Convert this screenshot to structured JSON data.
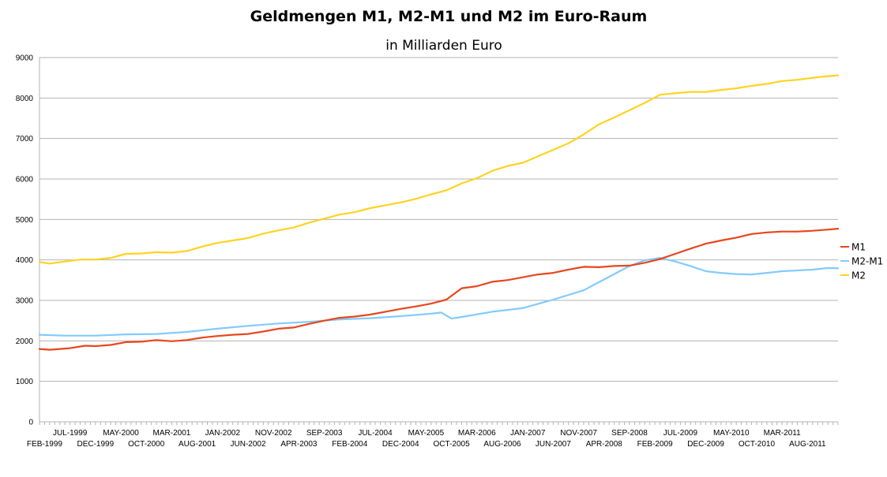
{
  "chart_data": {
    "type": "line",
    "title": "Geldmengen M1, M2-M1 und M2 im Euro-Raum",
    "subtitle": "in Milliarden Euro",
    "xlabel": "",
    "ylabel": "",
    "ylim": [
      0,
      9000
    ],
    "yticks": [
      0,
      1000,
      2000,
      3000,
      4000,
      5000,
      6000,
      7000,
      8000,
      9000
    ],
    "x_start": "1999-01",
    "x_end": "2012-02",
    "grid": true,
    "legend_position": "right",
    "xticks_upper": [
      "JUL-1999",
      "MAY-2000",
      "MAR-2001",
      "JAN-2002",
      "NOV-2002",
      "SEP-2003",
      "JUL-2004",
      "MAY-2005",
      "MAR-2006",
      "JAN-2007",
      "NOV-2007",
      "SEP-2008",
      "JUL-2009",
      "MAY-2010",
      "MAR-2011"
    ],
    "xticks_lower": [
      "FEB-1999",
      "DEC-1999",
      "OCT-2000",
      "AUG-2001",
      "JUN-2002",
      "APR-2003",
      "FEB-2004",
      "DEC-2004",
      "OCT-2005",
      "AUG-2006",
      "JUN-2007",
      "APR-2008",
      "FEB-2009",
      "DEC-2009",
      "OCT-2010",
      "AUG-2011"
    ],
    "series": [
      {
        "name": "M1",
        "color": "#e8461c",
        "points": [
          [
            "1999-01",
            1800
          ],
          [
            "1999-03",
            1780
          ],
          [
            "1999-07",
            1820
          ],
          [
            "1999-10",
            1880
          ],
          [
            "1999-12",
            1870
          ],
          [
            "2000-03",
            1900
          ],
          [
            "2000-06",
            1970
          ],
          [
            "2000-09",
            1980
          ],
          [
            "2000-12",
            2020
          ],
          [
            "2001-03",
            1990
          ],
          [
            "2001-06",
            2020
          ],
          [
            "2001-09",
            2080
          ],
          [
            "2001-12",
            2120
          ],
          [
            "2002-03",
            2150
          ],
          [
            "2002-06",
            2170
          ],
          [
            "2002-09",
            2230
          ],
          [
            "2002-12",
            2300
          ],
          [
            "2003-03",
            2330
          ],
          [
            "2003-06",
            2420
          ],
          [
            "2003-09",
            2500
          ],
          [
            "2003-12",
            2570
          ],
          [
            "2004-03",
            2600
          ],
          [
            "2004-06",
            2650
          ],
          [
            "2004-09",
            2720
          ],
          [
            "2004-12",
            2790
          ],
          [
            "2005-03",
            2850
          ],
          [
            "2005-06",
            2920
          ],
          [
            "2005-09",
            3020
          ],
          [
            "2005-12",
            3300
          ],
          [
            "2006-03",
            3350
          ],
          [
            "2006-06",
            3460
          ],
          [
            "2006-09",
            3500
          ],
          [
            "2006-12",
            3570
          ],
          [
            "2007-03",
            3640
          ],
          [
            "2007-06",
            3680
          ],
          [
            "2007-09",
            3760
          ],
          [
            "2007-12",
            3830
          ],
          [
            "2008-03",
            3820
          ],
          [
            "2008-06",
            3850
          ],
          [
            "2008-09",
            3860
          ],
          [
            "2008-12",
            3930
          ],
          [
            "2009-03",
            4020
          ],
          [
            "2009-06",
            4150
          ],
          [
            "2009-09",
            4280
          ],
          [
            "2009-12",
            4400
          ],
          [
            "2010-03",
            4480
          ],
          [
            "2010-06",
            4550
          ],
          [
            "2010-09",
            4640
          ],
          [
            "2010-12",
            4680
          ],
          [
            "2011-03",
            4700
          ],
          [
            "2011-06",
            4700
          ],
          [
            "2011-09",
            4720
          ],
          [
            "2011-12",
            4750
          ],
          [
            "2012-02",
            4770
          ]
        ]
      },
      {
        "name": "M2-M1",
        "color": "#83caff",
        "points": [
          [
            "1999-01",
            2150
          ],
          [
            "1999-06",
            2130
          ],
          [
            "1999-12",
            2130
          ],
          [
            "2000-06",
            2160
          ],
          [
            "2000-12",
            2170
          ],
          [
            "2001-06",
            2220
          ],
          [
            "2001-12",
            2300
          ],
          [
            "2002-06",
            2370
          ],
          [
            "2002-12",
            2430
          ],
          [
            "2003-06",
            2470
          ],
          [
            "2003-12",
            2530
          ],
          [
            "2004-06",
            2560
          ],
          [
            "2004-12",
            2610
          ],
          [
            "2005-06",
            2670
          ],
          [
            "2005-08",
            2700
          ],
          [
            "2005-10",
            2550
          ],
          [
            "2005-12",
            2590
          ],
          [
            "2006-06",
            2720
          ],
          [
            "2006-12",
            2810
          ],
          [
            "2007-06",
            3020
          ],
          [
            "2007-12",
            3250
          ],
          [
            "2008-06",
            3650
          ],
          [
            "2008-09",
            3850
          ],
          [
            "2008-12",
            3990
          ],
          [
            "2009-03",
            4050
          ],
          [
            "2009-06",
            3960
          ],
          [
            "2009-09",
            3850
          ],
          [
            "2009-12",
            3720
          ],
          [
            "2010-03",
            3680
          ],
          [
            "2010-06",
            3650
          ],
          [
            "2010-09",
            3640
          ],
          [
            "2010-12",
            3680
          ],
          [
            "2011-03",
            3720
          ],
          [
            "2011-06",
            3740
          ],
          [
            "2011-09",
            3760
          ],
          [
            "2011-12",
            3800
          ],
          [
            "2012-02",
            3790
          ]
        ]
      },
      {
        "name": "M2",
        "color": "#ffd320",
        "points": [
          [
            "1999-01",
            3950
          ],
          [
            "1999-03",
            3910
          ],
          [
            "1999-06",
            3960
          ],
          [
            "1999-09",
            4010
          ],
          [
            "1999-12",
            4010
          ],
          [
            "2000-03",
            4050
          ],
          [
            "2000-06",
            4150
          ],
          [
            "2000-09",
            4160
          ],
          [
            "2000-12",
            4190
          ],
          [
            "2001-03",
            4180
          ],
          [
            "2001-06",
            4220
          ],
          [
            "2001-09",
            4330
          ],
          [
            "2001-12",
            4420
          ],
          [
            "2002-03",
            4480
          ],
          [
            "2002-06",
            4540
          ],
          [
            "2002-09",
            4650
          ],
          [
            "2002-12",
            4730
          ],
          [
            "2003-03",
            4800
          ],
          [
            "2003-06",
            4920
          ],
          [
            "2003-09",
            5020
          ],
          [
            "2003-12",
            5120
          ],
          [
            "2004-03",
            5180
          ],
          [
            "2004-06",
            5280
          ],
          [
            "2004-09",
            5350
          ],
          [
            "2004-12",
            5420
          ],
          [
            "2005-03",
            5510
          ],
          [
            "2005-06",
            5620
          ],
          [
            "2005-09",
            5720
          ],
          [
            "2005-12",
            5890
          ],
          [
            "2006-03",
            6020
          ],
          [
            "2006-06",
            6200
          ],
          [
            "2006-09",
            6320
          ],
          [
            "2006-12",
            6400
          ],
          [
            "2007-03",
            6560
          ],
          [
            "2007-06",
            6720
          ],
          [
            "2007-09",
            6880
          ],
          [
            "2007-12",
            7100
          ],
          [
            "2008-03",
            7350
          ],
          [
            "2008-06",
            7520
          ],
          [
            "2008-09",
            7700
          ],
          [
            "2008-12",
            7880
          ],
          [
            "2009-03",
            8080
          ],
          [
            "2009-06",
            8120
          ],
          [
            "2009-09",
            8150
          ],
          [
            "2009-12",
            8150
          ],
          [
            "2010-03",
            8200
          ],
          [
            "2010-06",
            8240
          ],
          [
            "2010-09",
            8300
          ],
          [
            "2010-12",
            8350
          ],
          [
            "2011-03",
            8420
          ],
          [
            "2011-06",
            8450
          ],
          [
            "2011-09",
            8500
          ],
          [
            "2011-12",
            8540
          ],
          [
            "2012-02",
            8560
          ]
        ]
      }
    ]
  }
}
